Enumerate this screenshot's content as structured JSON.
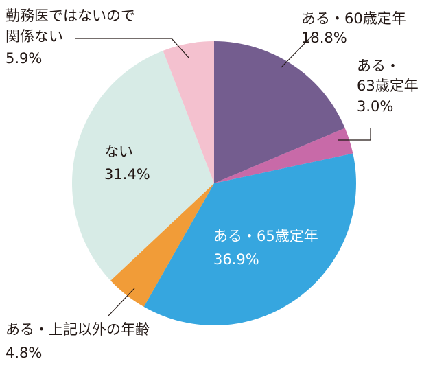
{
  "chart_data": {
    "type": "pie",
    "slices": [
      {
        "label_line1": "ある・60歳定年",
        "label_line2": "",
        "value": 18.8,
        "value_text": "18.8%",
        "color": "#745d8f"
      },
      {
        "label_line1": "ある・",
        "label_line2": "63歳定年",
        "value": 3.0,
        "value_text": "3.0%",
        "color": "#c86aa8"
      },
      {
        "label_line1": "ある・65歳定年",
        "label_line2": "",
        "value": 36.9,
        "value_text": "36.9%",
        "color": "#36a6df"
      },
      {
        "label_line1": "ある・上記以外の年齢",
        "label_line2": "",
        "value": 4.8,
        "value_text": "4.8%",
        "color": "#f19c38"
      },
      {
        "label_line1": "ない",
        "label_line2": "",
        "value": 31.4,
        "value_text": "31.4%",
        "color": "#d7ebe6"
      },
      {
        "label_line1": "勤務医ではないので",
        "label_line2": "関係ない",
        "value": 5.9,
        "value_text": "5.9%",
        "color": "#f4c1cf"
      }
    ]
  }
}
